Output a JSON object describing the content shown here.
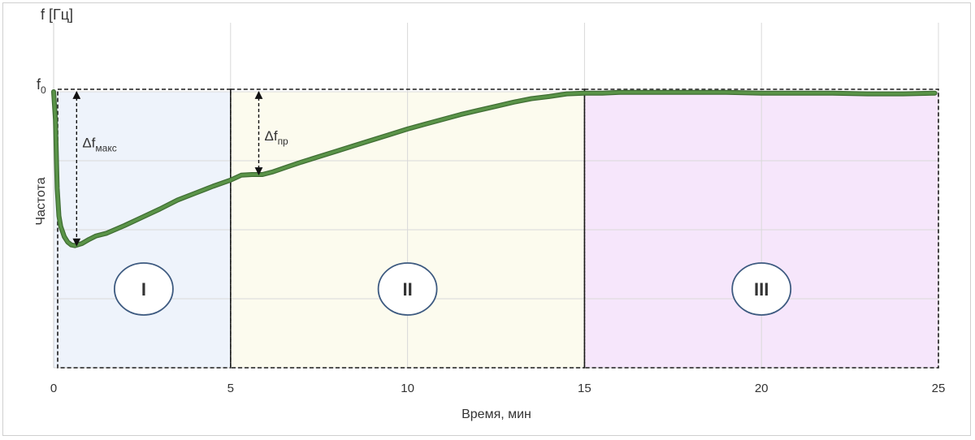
{
  "chart_data": {
    "type": "line",
    "xlabel": "Время, мин",
    "ylabel": "Частота",
    "y_unit_label": "f [Гц]",
    "y_reference_label": "f",
    "y_reference_subscript": "0",
    "xlim": [
      0,
      25
    ],
    "ylim": [
      0,
      4
    ],
    "x_ticks": [
      0,
      5,
      10,
      15,
      20,
      25
    ],
    "y_gridlines": [
      1,
      2,
      3,
      4
    ],
    "grid": true,
    "y_ticks_labeled": false,
    "series": [
      {
        "color": "#5a9448",
        "x": [
          0,
          0.05,
          0.1,
          0.15,
          0.2,
          0.3,
          0.4,
          0.5,
          0.6,
          0.8,
          1.0,
          1.2,
          1.5,
          2.0,
          2.5,
          3.0,
          3.5,
          4.0,
          4.5,
          5.0,
          5.3,
          5.6,
          5.9,
          6.2,
          6.6,
          7.0,
          7.5,
          8.0,
          8.5,
          9.0,
          9.5,
          10.0,
          10.5,
          11.0,
          11.5,
          12.0,
          12.5,
          13.0,
          13.5,
          14.0,
          14.5,
          15.0,
          15.5,
          16.0,
          17.0,
          18.0,
          19.0,
          20.0,
          21.0,
          22.0,
          23.0,
          24.0,
          24.9
        ],
        "y": [
          4.0,
          3.6,
          2.6,
          2.2,
          2.05,
          1.9,
          1.82,
          1.78,
          1.77,
          1.8,
          1.86,
          1.91,
          1.95,
          2.06,
          2.18,
          2.3,
          2.43,
          2.53,
          2.63,
          2.72,
          2.79,
          2.8,
          2.8,
          2.84,
          2.91,
          2.98,
          3.06,
          3.14,
          3.22,
          3.3,
          3.38,
          3.46,
          3.53,
          3.6,
          3.67,
          3.73,
          3.79,
          3.85,
          3.9,
          3.93,
          3.97,
          3.98,
          3.98,
          3.99,
          3.99,
          3.99,
          3.99,
          3.98,
          3.98,
          3.98,
          3.97,
          3.97,
          3.98
        ]
      }
    ],
    "regions": [
      {
        "label": "I",
        "x_range": [
          0,
          5
        ],
        "color": "#eef3fb"
      },
      {
        "label": "II",
        "x_range": [
          5,
          15
        ],
        "color": "#fcfbee"
      },
      {
        "label": "III",
        "x_range": [
          15,
          25
        ],
        "color": "#f6e6fb"
      }
    ],
    "annotations": [
      {
        "label": "Δf",
        "subscript": "макс",
        "x": 0.65,
        "y_from": 4.0,
        "y_to": 1.77
      },
      {
        "label": "Δf",
        "subscript": "пр",
        "x": 5.75,
        "y_from": 4.0,
        "y_to": 2.8
      }
    ]
  }
}
